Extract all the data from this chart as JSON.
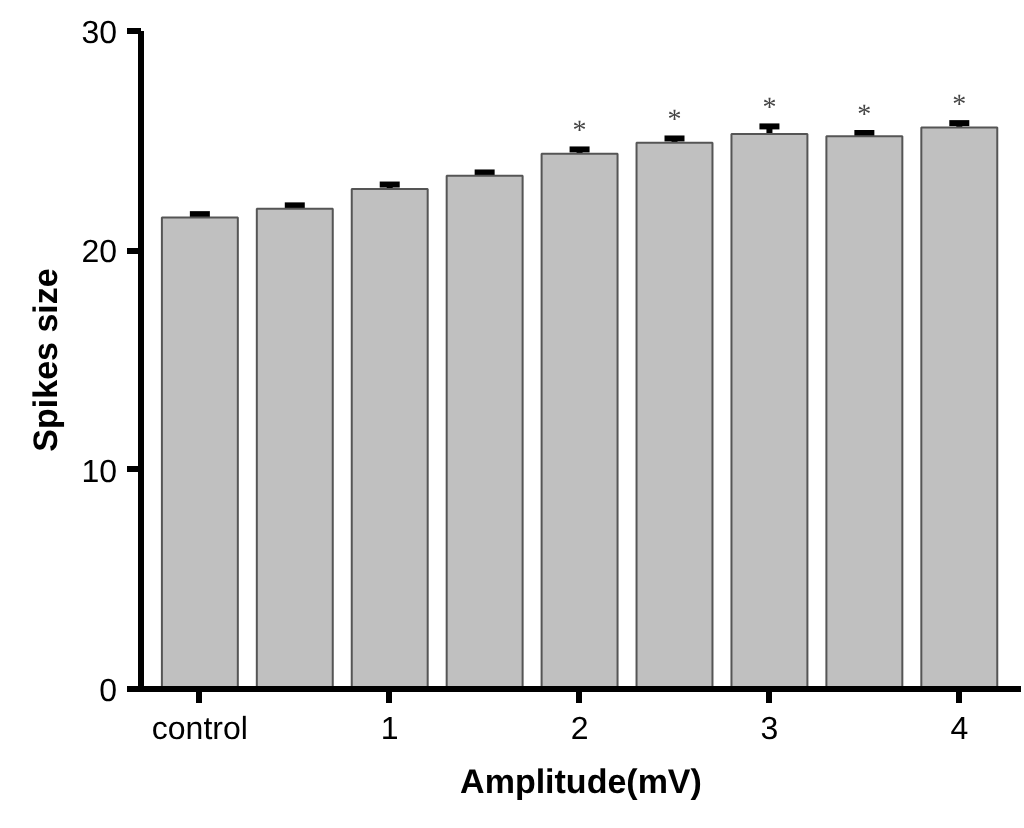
{
  "chart_data": {
    "type": "bar",
    "xlabel": "Amplitude(mV)",
    "ylabel": "Spikes size",
    "categories": [
      "control",
      null,
      "1",
      null,
      "2",
      null,
      "3",
      null,
      "4"
    ],
    "values": [
      21.5,
      21.9,
      22.8,
      23.4,
      24.4,
      24.9,
      25.3,
      25.2,
      25.6
    ],
    "errors": [
      0.15,
      0.15,
      0.2,
      0.15,
      0.2,
      0.2,
      0.35,
      0.15,
      0.2
    ],
    "value_labels": [
      null,
      null,
      null,
      null,
      "*",
      "*",
      "*",
      "*",
      "*"
    ],
    "color": "#c0c0c0",
    "ylim": [
      0,
      30
    ],
    "yticks": [
      0,
      10,
      20,
      30
    ],
    "grid": false
  }
}
